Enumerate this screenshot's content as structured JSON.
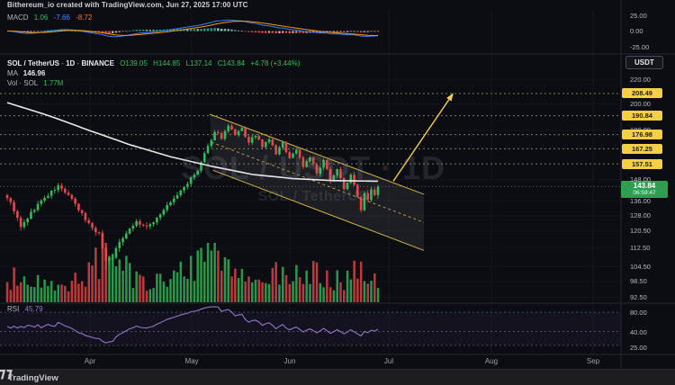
{
  "header": {
    "attribution": "Bithereum_io created with TradingView.com, Jun 27, 2025 17:00 UTC"
  },
  "toolbar": {
    "currency_button": "USDT"
  },
  "watermark": {
    "line1": "SOL / USDT · 1D",
    "line2": "SOL / TetherUS"
  },
  "branding": {
    "logo_text": "TradingView"
  },
  "macd_pane": {
    "label": "MACD",
    "hist_value": "1.06",
    "macd_value": "-7.66",
    "signal_value": "-8.72",
    "scale": [
      "25.00",
      "0.00",
      "-25.00"
    ]
  },
  "main_pane": {
    "legend": {
      "symbol": "SOL / TetherUS",
      "separator": "-",
      "timeframe": "1D",
      "exchange": "BINANCE",
      "open": "O139.05",
      "high": "H144.85",
      "low": "L137.14",
      "close": "C143.84",
      "change": "+4.78 (+3.44%)"
    },
    "ma": {
      "label": "MA",
      "value": "146.96"
    },
    "volume": {
      "label": "Vol · SOL",
      "value": "1.77M"
    }
  },
  "rsi_pane": {
    "label": "RSI",
    "value": "45.79",
    "scale": [
      "80.00",
      "40.00",
      "25.00"
    ]
  },
  "price_scale": {
    "plain_labels": [
      220,
      200,
      180,
      148,
      136,
      128,
      120.5,
      112.5,
      104.5,
      98.5,
      92.5
    ],
    "level_labels": [
      208.49,
      190.84,
      176.98,
      167.25,
      157.51
    ],
    "last_price": {
      "value": "143.84",
      "countdown": "06:59:47"
    }
  },
  "time_axis": {
    "months": [
      "Apr",
      "May",
      "Jun",
      "Jul",
      "Aug",
      "Sep"
    ]
  },
  "colors": {
    "candle_up": "#2ebd59",
    "candle_down": "#e8464a",
    "hist_up": "#26a69a",
    "hist_up_light": "#8cd0c9",
    "hist_down": "#ef5350",
    "hist_down_light": "#f2a6a4",
    "macd_line": "#3b82f6",
    "signal_line": "#f59e0b",
    "ma_line": "#e9e9ec",
    "rsi_line": "#9575cd",
    "level_yellow": "#f6cf47",
    "last_price_green": "#2f9e50",
    "legend_green": "#2ebd59",
    "legend_blue": "#4f86f7",
    "legend_orange": "#f07b29"
  },
  "chart_data": {
    "type": "candlestick",
    "symbol": "SOL/USDT",
    "description": "SOL / TetherUS",
    "exchange": "BINANCE",
    "interval": "1D",
    "as_of": "Jun 27, 2025 17:00 UTC",
    "last_candle": {
      "open": 139.05,
      "high": 144.85,
      "low": 137.14,
      "close": 143.84,
      "change": 4.78,
      "change_pct": 3.44
    },
    "indicators": {
      "ma": 146.96,
      "rsi": 45.79,
      "macd": {
        "histogram": 1.06,
        "macd": -7.66,
        "signal": -8.72
      },
      "volume": "1.77M"
    },
    "yellow_levels": [
      208.49,
      190.84,
      176.98,
      167.25,
      157.51
    ],
    "price_axis_labels": [
      220,
      200,
      180,
      148,
      136,
      128,
      120.5,
      112.5,
      104.5,
      98.5,
      92.5
    ],
    "price_axis_range": [
      92.5,
      220
    ],
    "macd_axis_labels": [
      25,
      0,
      -25
    ],
    "rsi_axis_labels": [
      80,
      40,
      25
    ],
    "x_axis_months": [
      "Apr",
      "May",
      "Jun",
      "Jul",
      "Aug",
      "Sep"
    ],
    "close_path_anchors": [
      [
        0,
        138
      ],
      [
        2,
        131
      ],
      [
        4,
        122
      ],
      [
        6,
        127
      ],
      [
        9,
        134
      ],
      [
        12,
        139
      ],
      [
        15,
        144
      ],
      [
        18,
        139
      ],
      [
        21,
        131
      ],
      [
        24,
        124
      ],
      [
        27,
        119
      ],
      [
        29,
        107
      ],
      [
        31,
        109
      ],
      [
        33,
        115
      ],
      [
        35,
        120
      ],
      [
        38,
        125
      ],
      [
        41,
        122
      ],
      [
        44,
        127
      ],
      [
        47,
        133
      ],
      [
        50,
        139
      ],
      [
        53,
        146
      ],
      [
        56,
        153
      ],
      [
        58,
        164
      ],
      [
        60,
        172
      ],
      [
        61,
        180
      ],
      [
        63,
        175
      ],
      [
        65,
        183
      ],
      [
        67,
        176
      ],
      [
        69,
        181
      ],
      [
        71,
        171
      ],
      [
        73,
        177
      ],
      [
        75,
        168
      ],
      [
        77,
        174
      ],
      [
        79,
        164
      ],
      [
        81,
        171
      ],
      [
        83,
        161
      ],
      [
        85,
        167
      ],
      [
        87,
        156
      ],
      [
        89,
        162
      ],
      [
        91,
        151
      ],
      [
        93,
        159
      ],
      [
        95,
        148
      ],
      [
        97,
        154
      ],
      [
        99,
        143
      ],
      [
        101,
        150
      ],
      [
        103,
        139
      ],
      [
        104,
        131
      ],
      [
        105,
        141
      ],
      [
        106,
        137
      ],
      [
        107,
        143
      ],
      [
        108,
        139.05
      ],
      [
        109,
        143.84
      ]
    ],
    "ma_path_anchors": [
      [
        0,
        201
      ],
      [
        12,
        191
      ],
      [
        24,
        180
      ],
      [
        36,
        170
      ],
      [
        48,
        162
      ],
      [
        60,
        156
      ],
      [
        72,
        151
      ],
      [
        84,
        148.5
      ],
      [
        96,
        147.3
      ],
      [
        109,
        146.96
      ]
    ],
    "volume_profile_anchors": [
      [
        0,
        0.45
      ],
      [
        6,
        0.3
      ],
      [
        12,
        0.32
      ],
      [
        18,
        0.3
      ],
      [
        24,
        0.5
      ],
      [
        28,
        0.85
      ],
      [
        30,
        1.0
      ],
      [
        33,
        0.6
      ],
      [
        38,
        0.45
      ],
      [
        44,
        0.35
      ],
      [
        50,
        0.45
      ],
      [
        56,
        0.6
      ],
      [
        60,
        0.75
      ],
      [
        64,
        0.55
      ],
      [
        68,
        0.45
      ],
      [
        72,
        0.5
      ],
      [
        76,
        0.42
      ],
      [
        80,
        0.48
      ],
      [
        84,
        0.4
      ],
      [
        88,
        0.55
      ],
      [
        92,
        0.45
      ],
      [
        96,
        0.4
      ],
      [
        100,
        0.45
      ],
      [
        103,
        0.6
      ],
      [
        106,
        0.38
      ],
      [
        109,
        0.33
      ]
    ],
    "annotations": {
      "channel": {
        "style": "descending-parallel-channel",
        "upper": [
          [
            59.5,
            192
          ],
          [
            122.5,
            139.5
          ]
        ],
        "lower": [
          [
            60.5,
            153.5
          ],
          [
            122.5,
            111.5
          ]
        ]
      },
      "arrow": {
        "from": [
          113.5,
          147
        ],
        "to": [
          131.2,
          209
        ]
      }
    }
  }
}
